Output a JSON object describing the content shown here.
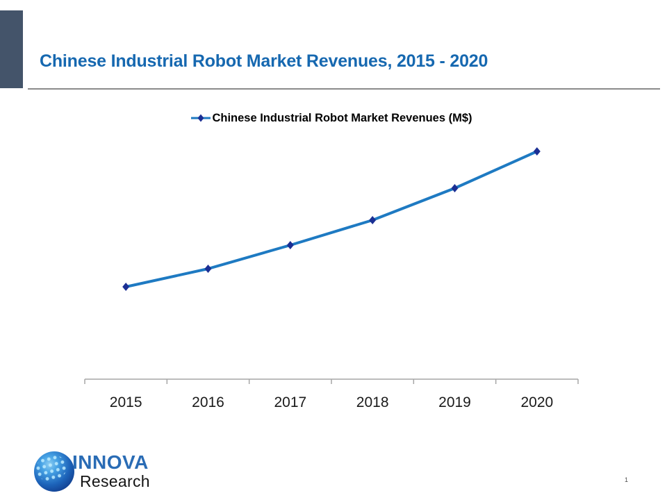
{
  "slide": {
    "title": "Chinese Industrial Robot Market Revenues, 2015 - 2020",
    "page_number": "1"
  },
  "logo": {
    "brand": "INNOVA",
    "sub_brand": "Research"
  },
  "colors": {
    "accent_bar": "#44546A",
    "title_blue": "#1668B0",
    "brand_blue": "#2A6CB5"
  },
  "chart_data": {
    "type": "line",
    "title": "Chinese Industrial Robot Market Revenues, 2015 - 2020",
    "categories": [
      "2015",
      "2016",
      "2017",
      "2018",
      "2019",
      "2020"
    ],
    "series": [
      {
        "name": "Chinese Industrial Robot Market Revenues (M$)",
        "values": [
          1330,
          1590,
          1930,
          2290,
          2750,
          3280
        ]
      }
    ],
    "xlabel": "",
    "ylabel": "",
    "ylim": [
      0,
      3600
    ],
    "y_axis_visible": false,
    "grid": false,
    "legend_position": "top",
    "line_color": "#1E7AC2",
    "marker": "diamond",
    "marker_color": "#1B2F94",
    "axis_color": "#A6A6A6",
    "tick_label_color": "#1a1a1a"
  }
}
